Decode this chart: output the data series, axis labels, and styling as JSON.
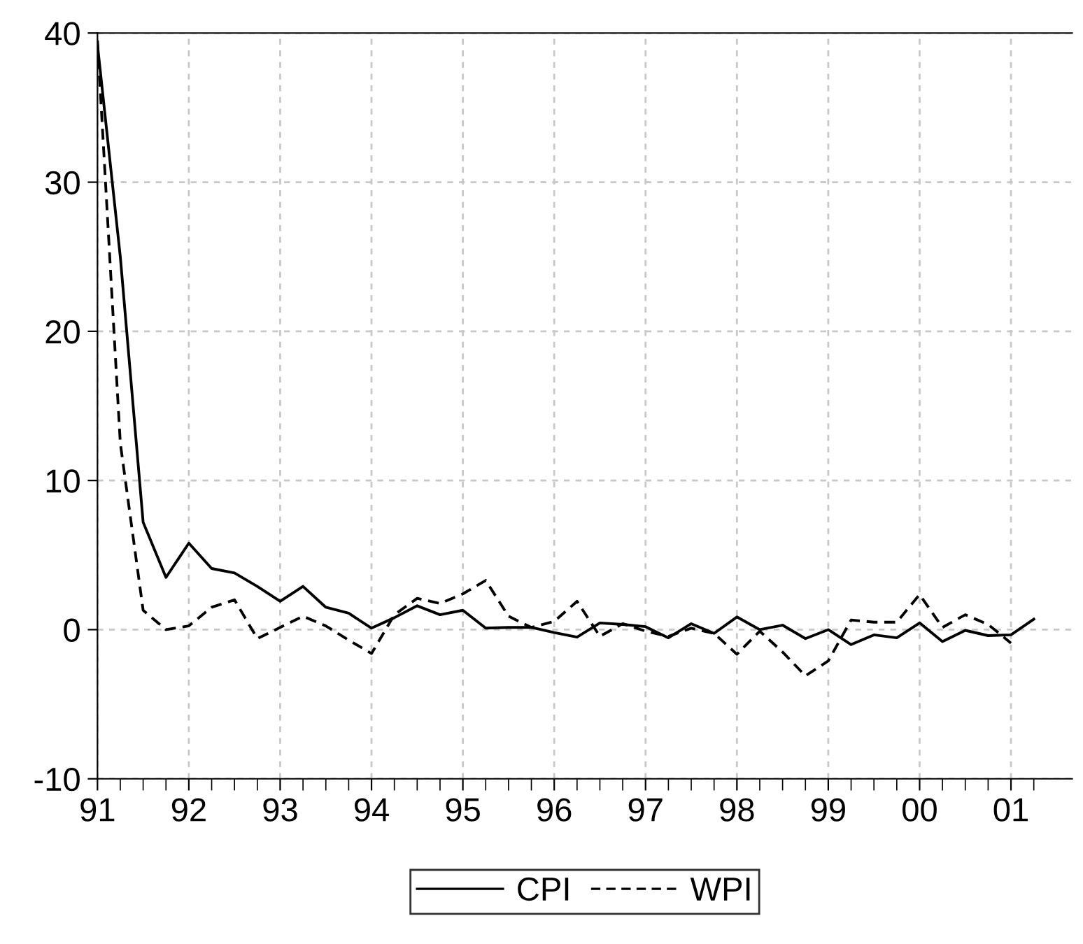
{
  "chart_data": {
    "type": "line",
    "x": [
      1991.0,
      1991.25,
      1991.5,
      1991.75,
      1992.0,
      1992.25,
      1992.5,
      1992.75,
      1993.0,
      1993.25,
      1993.5,
      1993.75,
      1994.0,
      1994.25,
      1994.5,
      1994.75,
      1995.0,
      1995.25,
      1995.5,
      1995.75,
      1996.0,
      1996.25,
      1996.5,
      1996.75,
      1997.0,
      1997.25,
      1997.5,
      1997.75,
      1998.0,
      1998.25,
      1998.5,
      1998.75,
      1999.0,
      1999.25,
      1999.5,
      1999.75,
      2000.0,
      2000.25,
      2000.5,
      2000.75,
      2001.0,
      2001.25
    ],
    "series": [
      {
        "name": "CPI",
        "color": "#000000",
        "line_style": "solid",
        "values": [
          39.2,
          25,
          7.2,
          3.5,
          5.8,
          4.1,
          3.8,
          2.9,
          1.9,
          2.9,
          1.5,
          1.1,
          0.1,
          0.8,
          1.6,
          1.0,
          1.3,
          0.1,
          0.15,
          0.15,
          -0.2,
          -0.5,
          0.45,
          0.35,
          0.2,
          -0.55,
          0.4,
          -0.25,
          0.85,
          0.0,
          0.3,
          -0.6,
          0.0,
          -1.0,
          -0.35,
          -0.55,
          0.45,
          -0.8,
          -0.05,
          -0.4,
          -0.35,
          0.7
        ]
      },
      {
        "name": "WPI",
        "color": "#000000",
        "line_style": "dashed",
        "values": [
          39.5,
          12.5,
          1.3,
          0.0,
          0.25,
          1.5,
          2.0,
          -0.6,
          0.15,
          0.9,
          0.25,
          -0.7,
          -1.6,
          1.0,
          2.1,
          1.75,
          2.4,
          3.3,
          0.9,
          0.15,
          0.55,
          1.9,
          -0.45,
          0.4,
          -0.1,
          -0.45,
          0.1,
          -0.25,
          -1.65,
          -0.1,
          -1.5,
          -3.1,
          -2.1,
          0.65,
          0.5,
          0.5,
          2.35,
          0.15,
          1.0,
          0.35,
          -0.9,
          null
        ]
      }
    ],
    "xlim": [
      1991.0,
      2001.67
    ],
    "xticks": [
      {
        "value": 1991,
        "label": "91"
      },
      {
        "value": 1992,
        "label": "92"
      },
      {
        "value": 1993,
        "label": "93"
      },
      {
        "value": 1994,
        "label": "94"
      },
      {
        "value": 1995,
        "label": "95"
      },
      {
        "value": 1996,
        "label": "96"
      },
      {
        "value": 1997,
        "label": "97"
      },
      {
        "value": 1998,
        "label": "98"
      },
      {
        "value": 1999,
        "label": "99"
      },
      {
        "value": 2000,
        "label": "00"
      },
      {
        "value": 2001,
        "label": "01"
      }
    ],
    "ylim": [
      -10,
      40
    ],
    "yticks": [
      -10,
      0,
      10,
      20,
      30,
      40
    ],
    "grid": true,
    "legend": "bottom"
  }
}
